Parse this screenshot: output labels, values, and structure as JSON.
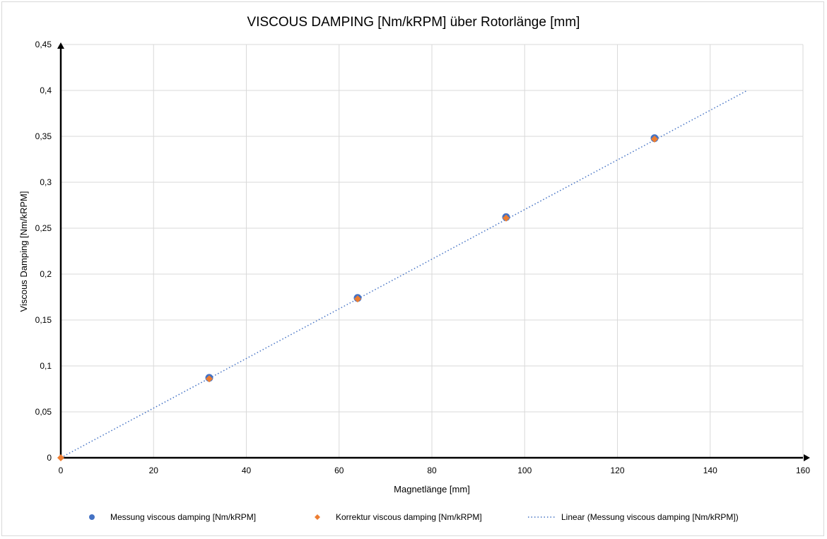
{
  "chart_data": {
    "type": "scatter",
    "title": "VISCOUS DAMPING [Nm/kRPM] über Rotorlänge [mm]",
    "xlabel": "Magnetlänge [mm]",
    "ylabel": "Viscous Damping [Nm/kRPM]",
    "xlim": [
      0,
      160
    ],
    "ylim": [
      0,
      0.45
    ],
    "xticks": [
      0,
      20,
      40,
      60,
      80,
      100,
      120,
      140,
      160
    ],
    "xtick_labels": [
      "0",
      "20",
      "40",
      "60",
      "80",
      "100",
      "120",
      "140",
      "160"
    ],
    "yticks": [
      0,
      0.05,
      0.1,
      0.15,
      0.2,
      0.25,
      0.3,
      0.35,
      0.4,
      0.45
    ],
    "ytick_labels": [
      "0",
      "0,05",
      "0,1",
      "0,15",
      "0,2",
      "0,25",
      "0,3",
      "0,35",
      "0,4",
      "0,45"
    ],
    "grid": true,
    "legend_position": "bottom",
    "series": [
      {
        "name": "Messung viscous damping [Nm/kRPM]",
        "marker": "circle",
        "color": "#4472C4",
        "x": [
          32,
          64,
          96,
          128
        ],
        "y": [
          0.087,
          0.174,
          0.262,
          0.348
        ]
      },
      {
        "name": "Korrektur viscous damping [Nm/kRPM]",
        "marker": "diamond",
        "color": "#ED7D31",
        "x": [
          0,
          32,
          64,
          96,
          128
        ],
        "y": [
          0,
          0.086,
          0.173,
          0.261,
          0.347
        ]
      },
      {
        "name": "Linear (Messung viscous damping [Nm/kRPM])",
        "type": "trendline",
        "color": "#4472C4",
        "x": [
          0,
          148
        ],
        "y": [
          0,
          0.4
        ]
      }
    ]
  }
}
